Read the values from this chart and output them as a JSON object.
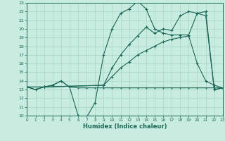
{
  "xlabel": "Humidex (Indice chaleur)",
  "bg_color": "#c8ece0",
  "grid_color": "#a8d4c4",
  "line_color": "#1a6655",
  "xlim": [
    0,
    23
  ],
  "ylim": [
    10,
    23
  ],
  "xticks": [
    0,
    1,
    2,
    3,
    4,
    5,
    6,
    7,
    8,
    9,
    10,
    11,
    12,
    13,
    14,
    15,
    16,
    17,
    18,
    19,
    20,
    21,
    22,
    23
  ],
  "yticks": [
    10,
    11,
    12,
    13,
    14,
    15,
    16,
    17,
    18,
    19,
    20,
    21,
    22,
    23
  ],
  "line1_x": [
    0,
    1,
    2,
    3,
    4,
    5,
    6,
    7,
    8,
    9,
    10,
    11,
    12,
    13,
    14,
    15,
    16,
    17,
    18,
    19,
    20,
    21,
    22,
    23
  ],
  "line1_y": [
    13.3,
    13.0,
    13.3,
    13.5,
    14.0,
    13.3,
    10.0,
    9.8,
    11.5,
    17.0,
    20.0,
    21.8,
    22.3,
    23.2,
    22.3,
    20.0,
    19.5,
    19.3,
    19.3,
    19.3,
    21.8,
    21.5,
    13.0,
    13.2
  ],
  "line2_x": [
    0,
    1,
    2,
    3,
    4,
    5,
    6,
    7,
    8,
    9,
    10,
    11,
    12,
    13,
    14,
    15,
    16,
    17,
    18,
    19,
    20,
    21,
    22,
    23
  ],
  "line2_y": [
    13.3,
    13.0,
    13.3,
    13.5,
    14.0,
    13.3,
    13.2,
    13.2,
    13.2,
    13.2,
    13.2,
    13.2,
    13.2,
    13.2,
    13.2,
    13.2,
    13.2,
    13.2,
    13.2,
    13.2,
    13.2,
    13.2,
    13.2,
    13.2
  ],
  "line3_x": [
    0,
    2,
    9,
    10,
    11,
    12,
    13,
    14,
    15,
    16,
    17,
    18,
    19,
    20,
    21,
    22,
    23
  ],
  "line3_y": [
    13.3,
    13.3,
    13.5,
    14.5,
    15.5,
    16.2,
    17.0,
    17.5,
    18.0,
    18.5,
    18.8,
    19.0,
    19.2,
    16.0,
    14.0,
    13.5,
    13.2
  ],
  "line4_x": [
    0,
    2,
    9,
    10,
    11,
    12,
    13,
    14,
    15,
    16,
    17,
    18,
    19,
    20,
    21,
    22,
    23
  ],
  "line4_y": [
    13.3,
    13.3,
    13.5,
    15.5,
    17.0,
    18.2,
    19.2,
    20.2,
    19.5,
    20.0,
    19.8,
    21.5,
    22.0,
    21.8,
    22.0,
    13.0,
    13.2
  ]
}
